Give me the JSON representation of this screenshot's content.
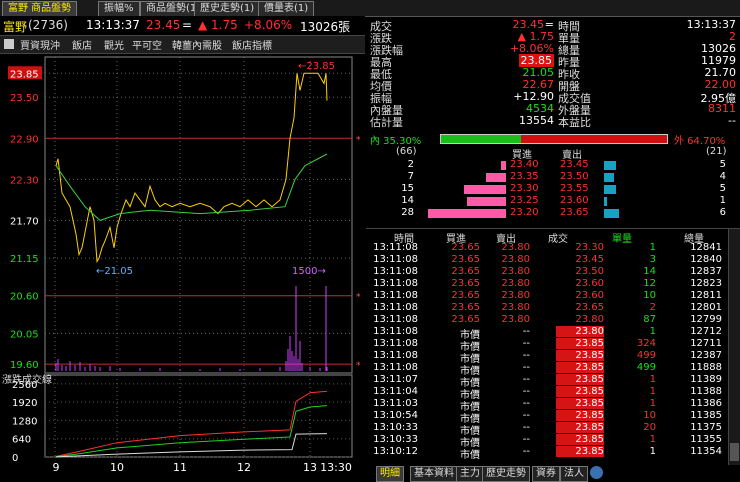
{
  "tabs": [
    {
      "label": "富野 商品盤勢"
    },
    {
      "label": "振幅%"
    },
    {
      "label": "商品盤勢(1)"
    },
    {
      "label": "歷史走勢(1)"
    },
    {
      "label": "價量表(1)"
    }
  ],
  "header": {
    "stock": "富野",
    "code": "(2736)",
    "time": "13:13:37",
    "price": "23.45",
    "price_mark": "=",
    "change": "▲ 1.75",
    "pct": "+8.06%",
    "volume": "13026張"
  },
  "menu": [
    "賈資現沖",
    "飯店",
    "觀光",
    "平可空",
    "韓薑內需股",
    "飯店指標"
  ],
  "chart_data": {
    "type": "line",
    "price_ticks": [
      "23.85",
      "23.50",
      "22.90",
      "22.30",
      "21.70",
      "21.15",
      "20.60",
      "20.05",
      "19.60"
    ],
    "price_ylim": [
      19.5,
      24.0
    ],
    "time_ticks": [
      "9",
      "10",
      "11",
      "12",
      "13",
      "13:30"
    ],
    "high_label": "←23.85",
    "low_label": "←21.05",
    "vol_label": "1500→",
    "lower_title": "漲跌成交線",
    "lower_ticks": [
      "2560",
      "1920",
      "1280",
      "640",
      "0"
    ]
  },
  "quote": {
    "rows": [
      {
        "l": "成交",
        "v": "23.45",
        "vs": "=",
        "c": "red",
        "l2": "時間",
        "v2": "13:13:37",
        "c2": "white"
      },
      {
        "l": "漲跌",
        "v": "▲ 1.75",
        "c": "red",
        "l2": "單量",
        "v2": "2",
        "c2": "red"
      },
      {
        "l": "漲跌幅",
        "v": "+8.06%",
        "c": "red",
        "l2": "總量",
        "v2": "13026",
        "c2": "white"
      },
      {
        "l": "最高",
        "v": "23.85",
        "c": "box",
        "l2": "昨量",
        "v2": "11979",
        "c2": "white"
      },
      {
        "l": "最低",
        "v": "21.05",
        "c": "green",
        "l2": "昨收",
        "v2": "21.70",
        "c2": "white"
      },
      {
        "l": "均價",
        "v": "22.67",
        "c": "red",
        "l2": "開盤",
        "v2": "22.00",
        "c2": "red"
      },
      {
        "l": "振幅",
        "v": "+12.90",
        "c": "white",
        "l2": "成交值",
        "v2": "2.95億",
        "c2": "white"
      },
      {
        "l": "內盤量",
        "v": "4534",
        "c": "green",
        "l2": "外盤量",
        "v2": "8311",
        "c2": "red"
      },
      {
        "l": "估計量",
        "v": "13554",
        "c": "white",
        "l2": "本益比",
        "v2": "--",
        "c2": "white"
      }
    ],
    "inner_pct": "內 35.30%",
    "outer_pct": "外  64.70%",
    "inner_frac": 0.353
  },
  "book": {
    "left_count": "(66)",
    "right_count": "(21)",
    "bid_header": "買進",
    "ask_header": "賣出",
    "levels": [
      {
        "bq": "2",
        "bid": "23.40",
        "ask": "23.45",
        "aq": "5",
        "bfrac": 0.07,
        "afrac": 0.55
      },
      {
        "bq": "7",
        "bid": "23.35",
        "ask": "23.50",
        "aq": "4",
        "bfrac": 0.25,
        "afrac": 0.45
      },
      {
        "bq": "15",
        "bid": "23.30",
        "ask": "23.55",
        "aq": "5",
        "bfrac": 0.54,
        "afrac": 0.55
      },
      {
        "bq": "14",
        "bid": "23.25",
        "ask": "23.60",
        "aq": "1",
        "bfrac": 0.5,
        "afrac": 0.12
      },
      {
        "bq": "28",
        "bid": "23.20",
        "ask": "23.65",
        "aq": "6",
        "bfrac": 1.0,
        "afrac": 0.68
      }
    ]
  },
  "ticks": {
    "headers": [
      "時間",
      "買進",
      "賣出",
      "成交",
      "單量",
      "總量"
    ],
    "rows": [
      [
        "13:11:08",
        "23.65",
        "23.80",
        "23.30",
        "1",
        "12841"
      ],
      [
        "13:11:08",
        "23.65",
        "23.80",
        "23.45",
        "3",
        "12840"
      ],
      [
        "13:11:08",
        "23.65",
        "23.80",
        "23.50",
        "14",
        "12837"
      ],
      [
        "13:11:08",
        "23.65",
        "23.80",
        "23.60",
        "12",
        "12823"
      ],
      [
        "13:11:08",
        "23.65",
        "23.80",
        "23.60",
        "10",
        "12811"
      ],
      [
        "13:11:08",
        "23.65",
        "23.80",
        "23.65",
        "2",
        "12801"
      ],
      [
        "13:11:08",
        "23.65",
        "23.80",
        "23.80",
        "87",
        "12799"
      ],
      [
        "13:11:08",
        "市價",
        "--",
        "23.80",
        "1",
        "12712"
      ],
      [
        "13:11:08",
        "市價",
        "--",
        "23.85",
        "324",
        "12711"
      ],
      [
        "13:11:08",
        "市價",
        "--",
        "23.85",
        "499",
        "12387"
      ],
      [
        "13:11:08",
        "市價",
        "--",
        "23.85",
        "499",
        "11888"
      ],
      [
        "13:11:07",
        "市價",
        "--",
        "23.85",
        "1",
        "11389"
      ],
      [
        "13:11:04",
        "市價",
        "--",
        "23.85",
        "1",
        "11388"
      ],
      [
        "13:11:03",
        "市價",
        "--",
        "23.85",
        "1",
        "11386"
      ],
      [
        "13:10:54",
        "市價",
        "--",
        "23.85",
        "10",
        "11385"
      ],
      [
        "13:10:33",
        "市價",
        "--",
        "23.85",
        "20",
        "11375"
      ],
      [
        "13:10:33",
        "市價",
        "--",
        "23.85",
        "1",
        "11355"
      ],
      [
        "13:10:12",
        "市價",
        "--",
        "23.85",
        "1",
        "11354"
      ]
    ]
  },
  "bottom_tabs": [
    "明細",
    "基本資料",
    "主力",
    "歷史走勢",
    "資券",
    "法人"
  ]
}
